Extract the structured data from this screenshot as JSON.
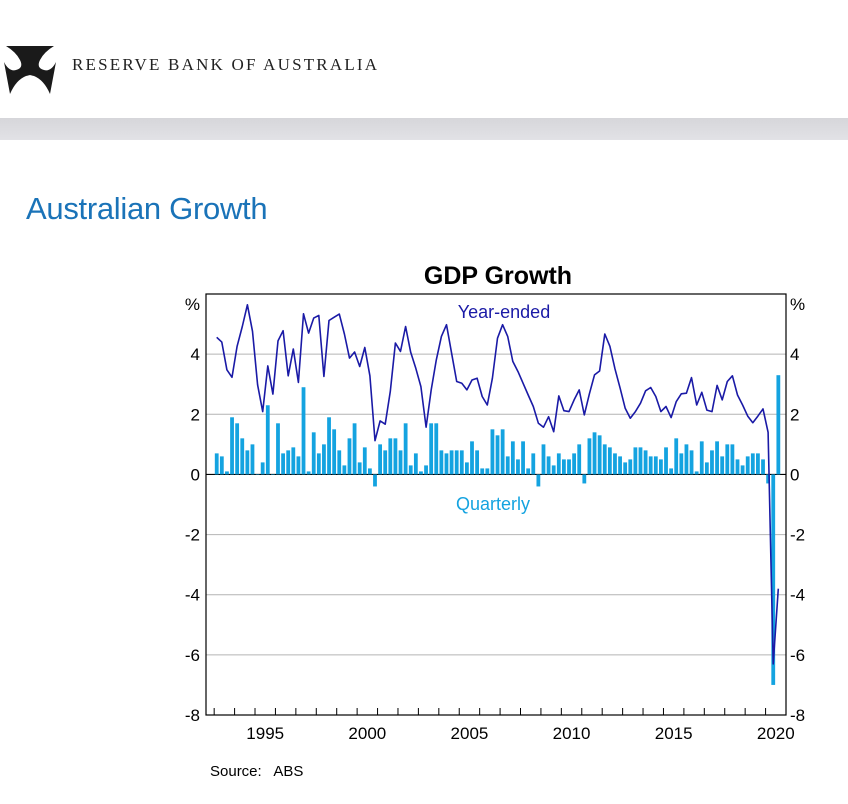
{
  "header": {
    "bank_name": "RESERVE BANK OF AUSTRALIA",
    "logo": "rba-logo"
  },
  "page": {
    "title": "Australian Growth"
  },
  "chart_data": {
    "type": "bar+line",
    "title": "GDP Growth",
    "unit_label": "%",
    "source": "Source:   ABS",
    "xlim": [
      1992.6,
      2021.0
    ],
    "ylim": [
      -8,
      6
    ],
    "y_ticks": [
      4,
      2,
      0,
      -2,
      -4,
      -6,
      -8
    ],
    "x_tick_labels": [
      "1995",
      "2000",
      "2005",
      "2010",
      "2015",
      "2020"
    ],
    "grid": true,
    "start_quarter": "1993 Q1",
    "end_quarter": "2020 Q3",
    "colors": {
      "quarterly": "#14a3e0",
      "year_ended": "#1a1aa6"
    },
    "series": [
      {
        "name": "Quarterly",
        "type": "bar",
        "values": [
          0.7,
          0.6,
          0.1,
          1.9,
          1.7,
          1.2,
          0.8,
          1.0,
          0.0,
          0.4,
          2.3,
          0.0,
          1.7,
          0.7,
          0.8,
          0.9,
          0.6,
          2.9,
          0.1,
          1.4,
          0.7,
          1.0,
          1.9,
          1.5,
          0.8,
          0.3,
          1.2,
          1.7,
          0.4,
          0.9,
          0.2,
          -0.4,
          1.0,
          0.8,
          1.2,
          1.2,
          0.8,
          1.7,
          0.3,
          0.7,
          0.1,
          0.3,
          1.7,
          1.7,
          0.8,
          0.7,
          0.8,
          0.8,
          0.8,
          0.4,
          1.1,
          0.8,
          0.2,
          0.2,
          1.5,
          1.3,
          1.5,
          0.6,
          1.1,
          0.5,
          1.1,
          0.2,
          0.7,
          -0.4,
          1.0,
          0.6,
          0.3,
          0.7,
          0.5,
          0.5,
          0.7,
          1.0,
          -0.3,
          1.2,
          1.4,
          1.3,
          1.0,
          0.9,
          0.7,
          0.6,
          0.4,
          0.5,
          0.9,
          0.9,
          0.8,
          0.6,
          0.6,
          0.5,
          0.9,
          0.2,
          1.2,
          0.7,
          1.0,
          0.8,
          0.1,
          1.1,
          0.4,
          0.8,
          1.1,
          0.6,
          1.0,
          1.0,
          0.5,
          0.3,
          0.6,
          0.7,
          0.7,
          0.5,
          -0.3,
          -7.0,
          3.3
        ]
      },
      {
        "name": "Year-ended",
        "type": "line",
        "values": [
          4.56,
          4.4,
          3.48,
          3.23,
          4.26,
          4.92,
          5.64,
          4.76,
          2.98,
          2.09,
          3.61,
          2.67,
          4.44,
          4.78,
          3.28,
          4.17,
          3.06,
          5.34,
          4.7,
          5.2,
          5.29,
          3.26,
          5.12,
          5.23,
          5.33,
          4.67,
          3.87,
          4.07,
          3.59,
          4.22,
          3.28,
          1.12,
          1.78,
          1.67,
          2.76,
          4.37,
          4.09,
          4.92,
          4.06,
          3.53,
          2.92,
          1.57,
          2.81,
          3.81,
          4.59,
          4.98,
          4.03,
          3.09,
          3.03,
          2.81,
          3.14,
          3.2,
          2.59,
          2.31,
          3.2,
          4.53,
          4.98,
          4.59,
          3.76,
          3.42,
          3.03,
          2.64,
          2.26,
          1.7,
          1.57,
          1.92,
          1.42,
          2.61,
          2.12,
          2.09,
          2.48,
          2.81,
          1.98,
          2.68,
          3.31,
          3.44,
          4.67,
          4.26,
          3.51,
          2.87,
          2.2,
          1.87,
          2.09,
          2.37,
          2.78,
          2.89,
          2.59,
          2.09,
          2.26,
          1.89,
          2.42,
          2.68,
          2.7,
          3.22,
          2.31,
          2.73,
          2.14,
          2.09,
          2.96,
          2.48,
          3.09,
          3.28,
          2.64,
          2.31,
          1.94,
          1.72,
          1.94,
          2.18,
          1.4,
          -6.3,
          -3.8
        ]
      }
    ]
  }
}
